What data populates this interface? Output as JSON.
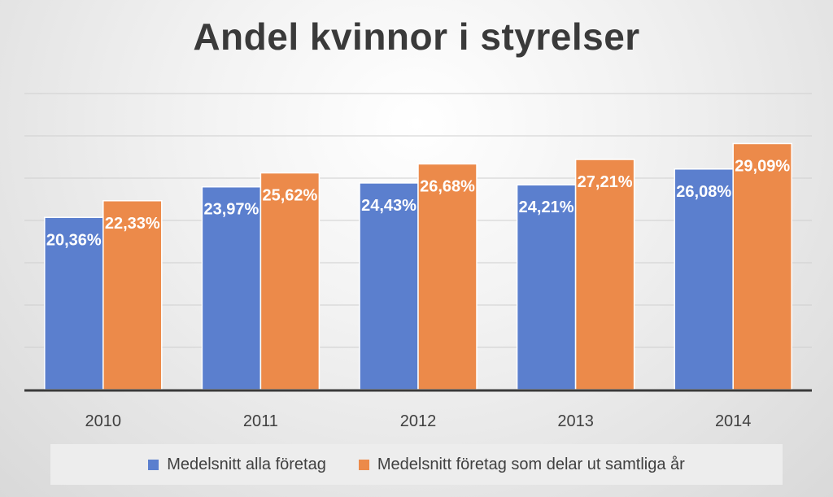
{
  "chart_data": {
    "type": "bar",
    "title": "Andel kvinnor i styrelser",
    "categories": [
      "2010",
      "2011",
      "2012",
      "2013",
      "2014"
    ],
    "series": [
      {
        "name": "Medelsnitt alla företag",
        "color": "#5b7fce",
        "values": [
          20.36,
          23.97,
          24.43,
          24.21,
          26.08
        ],
        "labels": [
          "20,36%",
          "23,97%",
          "24,43%",
          "24,21%",
          "26,08%"
        ]
      },
      {
        "name": "Medelsnitt företag som delar ut samtliga år",
        "color": "#ec8a4a",
        "values": [
          22.33,
          25.62,
          26.68,
          27.21,
          29.09
        ],
        "labels": [
          "22,33%",
          "25,62%",
          "26,68%",
          "27,21%",
          "29,09%"
        ]
      }
    ],
    "ylim": [
      0,
      35
    ],
    "grid": true,
    "xlabel": "",
    "ylabel": "",
    "legend_position": "bottom"
  }
}
